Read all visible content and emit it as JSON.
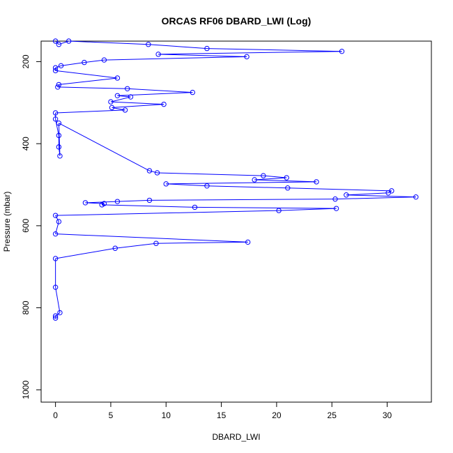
{
  "chart_data": {
    "type": "line",
    "title": "ORCAS RF06 DBARD_LWI (Log)",
    "xlabel": "DBARD_LWI",
    "ylabel": "Pressure (mbar)",
    "xlim": [
      -1.3,
      34
    ],
    "ylim": [
      1030,
      150
    ],
    "y_reversed": true,
    "x_ticks": [
      0,
      5,
      10,
      15,
      20,
      25,
      30
    ],
    "y_ticks": [
      200,
      400,
      600,
      800,
      1000
    ],
    "grid": false,
    "series_color": "#0000ff",
    "series": [
      {
        "points": [
          [
            0,
            150
          ],
          [
            0.3,
            158
          ],
          [
            1.2,
            150
          ],
          [
            8.4,
            158
          ],
          [
            13.7,
            168
          ],
          [
            25.9,
            175
          ],
          [
            9.3,
            182
          ],
          [
            17.3,
            188
          ],
          [
            4.4,
            196
          ],
          [
            2.6,
            202
          ],
          [
            0.5,
            210
          ],
          [
            0,
            215
          ],
          [
            0,
            222
          ],
          [
            5.6,
            240
          ],
          [
            0.3,
            256
          ],
          [
            0.2,
            262
          ],
          [
            6.5,
            266
          ],
          [
            12.4,
            275
          ],
          [
            5.6,
            283
          ],
          [
            6.8,
            286
          ],
          [
            5.0,
            298
          ],
          [
            9.8,
            304
          ],
          [
            5.1,
            312
          ],
          [
            6.3,
            318
          ],
          [
            0,
            325
          ],
          [
            0,
            340
          ],
          [
            0.3,
            380
          ],
          [
            0.3,
            408
          ],
          [
            0.4,
            430
          ],
          [
            0.3,
            350
          ],
          [
            8.5,
            466
          ],
          [
            9.2,
            471
          ],
          [
            18.8,
            478
          ],
          [
            20.9,
            483
          ],
          [
            18.0,
            488
          ],
          [
            23.6,
            493
          ],
          [
            10.0,
            498
          ],
          [
            13.7,
            503
          ],
          [
            21.0,
            508
          ],
          [
            30.4,
            515
          ],
          [
            30.1,
            520
          ],
          [
            26.3,
            525
          ],
          [
            32.6,
            530
          ],
          [
            25.3,
            535
          ],
          [
            8.5,
            538
          ],
          [
            5.6,
            541
          ],
          [
            2.7,
            544
          ],
          [
            4.4,
            546
          ],
          [
            4.2,
            549
          ],
          [
            12.6,
            555
          ],
          [
            25.4,
            558
          ],
          [
            20.2,
            563
          ],
          [
            0,
            575
          ],
          [
            0.3,
            590
          ],
          [
            0,
            620
          ],
          [
            17.4,
            640
          ],
          [
            9.1,
            643
          ],
          [
            5.4,
            655
          ],
          [
            0,
            680
          ],
          [
            0,
            750
          ],
          [
            0.4,
            812
          ],
          [
            0,
            820
          ],
          [
            0,
            825
          ]
        ]
      }
    ]
  }
}
